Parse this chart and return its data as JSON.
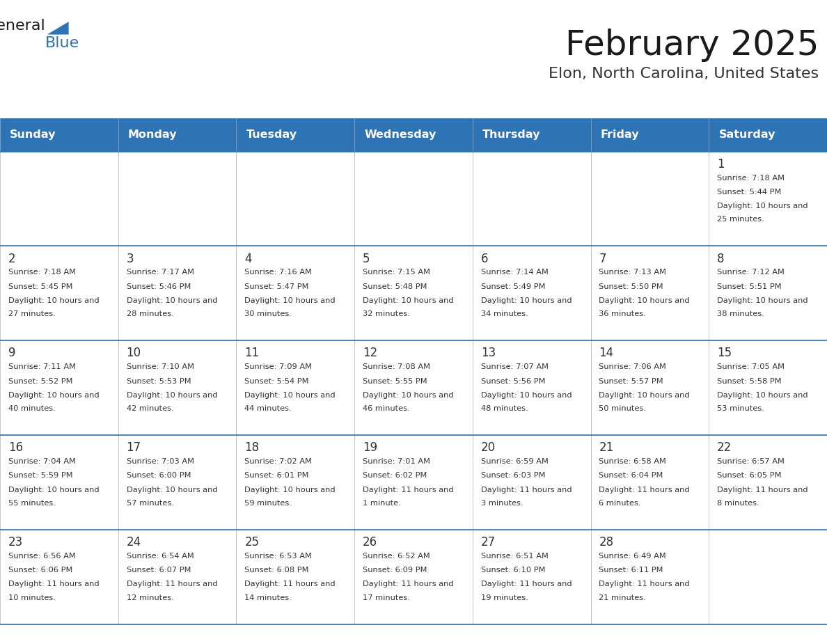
{
  "title": "February 2025",
  "subtitle": "Elon, North Carolina, United States",
  "header_bg": "#2E74B5",
  "header_text_color": "#FFFFFF",
  "cell_bg_white": "#FFFFFF",
  "day_names": [
    "Sunday",
    "Monday",
    "Tuesday",
    "Wednesday",
    "Thursday",
    "Friday",
    "Saturday"
  ],
  "days": [
    {
      "day": 1,
      "col": 6,
      "row": 0,
      "sunrise": "7:18 AM",
      "sunset": "5:44 PM",
      "daylight": "10 hours and 25 minutes."
    },
    {
      "day": 2,
      "col": 0,
      "row": 1,
      "sunrise": "7:18 AM",
      "sunset": "5:45 PM",
      "daylight": "10 hours and 27 minutes."
    },
    {
      "day": 3,
      "col": 1,
      "row": 1,
      "sunrise": "7:17 AM",
      "sunset": "5:46 PM",
      "daylight": "10 hours and 28 minutes."
    },
    {
      "day": 4,
      "col": 2,
      "row": 1,
      "sunrise": "7:16 AM",
      "sunset": "5:47 PM",
      "daylight": "10 hours and 30 minutes."
    },
    {
      "day": 5,
      "col": 3,
      "row": 1,
      "sunrise": "7:15 AM",
      "sunset": "5:48 PM",
      "daylight": "10 hours and 32 minutes."
    },
    {
      "day": 6,
      "col": 4,
      "row": 1,
      "sunrise": "7:14 AM",
      "sunset": "5:49 PM",
      "daylight": "10 hours and 34 minutes."
    },
    {
      "day": 7,
      "col": 5,
      "row": 1,
      "sunrise": "7:13 AM",
      "sunset": "5:50 PM",
      "daylight": "10 hours and 36 minutes."
    },
    {
      "day": 8,
      "col": 6,
      "row": 1,
      "sunrise": "7:12 AM",
      "sunset": "5:51 PM",
      "daylight": "10 hours and 38 minutes."
    },
    {
      "day": 9,
      "col": 0,
      "row": 2,
      "sunrise": "7:11 AM",
      "sunset": "5:52 PM",
      "daylight": "10 hours and 40 minutes."
    },
    {
      "day": 10,
      "col": 1,
      "row": 2,
      "sunrise": "7:10 AM",
      "sunset": "5:53 PM",
      "daylight": "10 hours and 42 minutes."
    },
    {
      "day": 11,
      "col": 2,
      "row": 2,
      "sunrise": "7:09 AM",
      "sunset": "5:54 PM",
      "daylight": "10 hours and 44 minutes."
    },
    {
      "day": 12,
      "col": 3,
      "row": 2,
      "sunrise": "7:08 AM",
      "sunset": "5:55 PM",
      "daylight": "10 hours and 46 minutes."
    },
    {
      "day": 13,
      "col": 4,
      "row": 2,
      "sunrise": "7:07 AM",
      "sunset": "5:56 PM",
      "daylight": "10 hours and 48 minutes."
    },
    {
      "day": 14,
      "col": 5,
      "row": 2,
      "sunrise": "7:06 AM",
      "sunset": "5:57 PM",
      "daylight": "10 hours and 50 minutes."
    },
    {
      "day": 15,
      "col": 6,
      "row": 2,
      "sunrise": "7:05 AM",
      "sunset": "5:58 PM",
      "daylight": "10 hours and 53 minutes."
    },
    {
      "day": 16,
      "col": 0,
      "row": 3,
      "sunrise": "7:04 AM",
      "sunset": "5:59 PM",
      "daylight": "10 hours and 55 minutes."
    },
    {
      "day": 17,
      "col": 1,
      "row": 3,
      "sunrise": "7:03 AM",
      "sunset": "6:00 PM",
      "daylight": "10 hours and 57 minutes."
    },
    {
      "day": 18,
      "col": 2,
      "row": 3,
      "sunrise": "7:02 AM",
      "sunset": "6:01 PM",
      "daylight": "10 hours and 59 minutes."
    },
    {
      "day": 19,
      "col": 3,
      "row": 3,
      "sunrise": "7:01 AM",
      "sunset": "6:02 PM",
      "daylight": "11 hours and 1 minute."
    },
    {
      "day": 20,
      "col": 4,
      "row": 3,
      "sunrise": "6:59 AM",
      "sunset": "6:03 PM",
      "daylight": "11 hours and 3 minutes."
    },
    {
      "day": 21,
      "col": 5,
      "row": 3,
      "sunrise": "6:58 AM",
      "sunset": "6:04 PM",
      "daylight": "11 hours and 6 minutes."
    },
    {
      "day": 22,
      "col": 6,
      "row": 3,
      "sunrise": "6:57 AM",
      "sunset": "6:05 PM",
      "daylight": "11 hours and 8 minutes."
    },
    {
      "day": 23,
      "col": 0,
      "row": 4,
      "sunrise": "6:56 AM",
      "sunset": "6:06 PM",
      "daylight": "11 hours and 10 minutes."
    },
    {
      "day": 24,
      "col": 1,
      "row": 4,
      "sunrise": "6:54 AM",
      "sunset": "6:07 PM",
      "daylight": "11 hours and 12 minutes."
    },
    {
      "day": 25,
      "col": 2,
      "row": 4,
      "sunrise": "6:53 AM",
      "sunset": "6:08 PM",
      "daylight": "11 hours and 14 minutes."
    },
    {
      "day": 26,
      "col": 3,
      "row": 4,
      "sunrise": "6:52 AM",
      "sunset": "6:09 PM",
      "daylight": "11 hours and 17 minutes."
    },
    {
      "day": 27,
      "col": 4,
      "row": 4,
      "sunrise": "6:51 AM",
      "sunset": "6:10 PM",
      "daylight": "11 hours and 19 minutes."
    },
    {
      "day": 28,
      "col": 5,
      "row": 4,
      "sunrise": "6:49 AM",
      "sunset": "6:11 PM",
      "daylight": "11 hours and 21 minutes."
    }
  ],
  "num_rows": 5,
  "num_cols": 7,
  "header_bg_color": "#2E74B5",
  "row_line_color": "#2E74B5",
  "border_color": "#BBBBBB",
  "text_color": "#333333",
  "logo_general_color": "#1a1a1a",
  "logo_blue_color": "#2E74B5",
  "logo_triangle_color": "#2E74B5"
}
